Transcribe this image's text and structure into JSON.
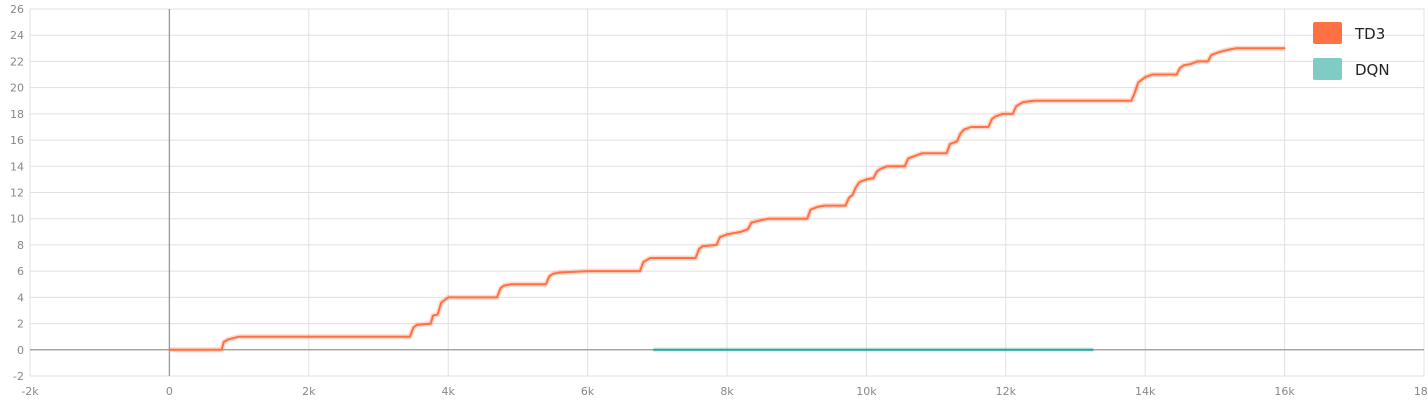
{
  "chart_data": {
    "type": "line",
    "title": "",
    "xlabel": "",
    "ylabel": "",
    "xlim": [
      -2000,
      18000
    ],
    "ylim": [
      -2,
      26
    ],
    "grid": true,
    "legend_position": "top-right",
    "x_tick_values": [
      -2000,
      0,
      2000,
      4000,
      6000,
      8000,
      10000,
      12000,
      14000,
      16000,
      18000
    ],
    "x_tick_labels": [
      "-2k",
      "0",
      "2k",
      "4k",
      "6k",
      "8k",
      "10k",
      "12k",
      "14k",
      "16k",
      "18k"
    ],
    "y_tick_values": [
      -2,
      0,
      2,
      4,
      6,
      8,
      10,
      12,
      14,
      16,
      18,
      20,
      22,
      24,
      26
    ],
    "y_tick_labels": [
      "-2",
      "0",
      "2",
      "4",
      "6",
      "8",
      "10",
      "12",
      "14",
      "16",
      "18",
      "20",
      "22",
      "24",
      "26"
    ],
    "series": [
      {
        "name": "TD3",
        "color": "#ff7043",
        "x": [
          0,
          750,
          780,
          850,
          1000,
          3450,
          3500,
          3550,
          3750,
          3780,
          3850,
          3900,
          3950,
          4000,
          4700,
          4750,
          4800,
          4900,
          5400,
          5450,
          5500,
          5600,
          6000,
          6750,
          6800,
          6900,
          7550,
          7600,
          7650,
          7850,
          7900,
          8000,
          8200,
          8300,
          8350,
          8500,
          8600,
          9150,
          9200,
          9300,
          9400,
          9700,
          9750,
          9800,
          9850,
          9900,
          10000,
          10100,
          10150,
          10200,
          10300,
          10550,
          10600,
          10700,
          10800,
          11150,
          11200,
          11300,
          11350,
          11400,
          11500,
          11750,
          11800,
          11850,
          11950,
          12100,
          12150,
          12250,
          12400,
          13800,
          13850,
          13900,
          14000,
          14100,
          14450,
          14500,
          14550,
          14650,
          14750,
          14900,
          14950,
          15050,
          15200,
          15300,
          16000
        ],
        "y": [
          0,
          0,
          0.6,
          0.8,
          1,
          1,
          1.7,
          1.9,
          2,
          2.6,
          2.7,
          3.6,
          3.8,
          4,
          4,
          4.7,
          4.9,
          5,
          5,
          5.6,
          5.8,
          5.9,
          6,
          6,
          6.7,
          7,
          7,
          7.7,
          7.9,
          8,
          8.6,
          8.8,
          9,
          9.2,
          9.7,
          9.9,
          10,
          10,
          10.7,
          10.9,
          11,
          11,
          11.6,
          11.8,
          12.4,
          12.8,
          13,
          13.1,
          13.6,
          13.8,
          14,
          14,
          14.6,
          14.8,
          15,
          15,
          15.7,
          15.9,
          16.5,
          16.8,
          17,
          17,
          17.6,
          17.8,
          18,
          18,
          18.6,
          18.9,
          19,
          19,
          19.6,
          20.4,
          20.8,
          21,
          21,
          21.5,
          21.7,
          21.8,
          22,
          22,
          22.5,
          22.7,
          22.9,
          23,
          23
        ]
      },
      {
        "name": "DQN",
        "color": "#80cbc4",
        "line_color": "#26a69a",
        "x": [
          6950,
          13250
        ],
        "y": [
          0,
          0
        ]
      }
    ]
  }
}
